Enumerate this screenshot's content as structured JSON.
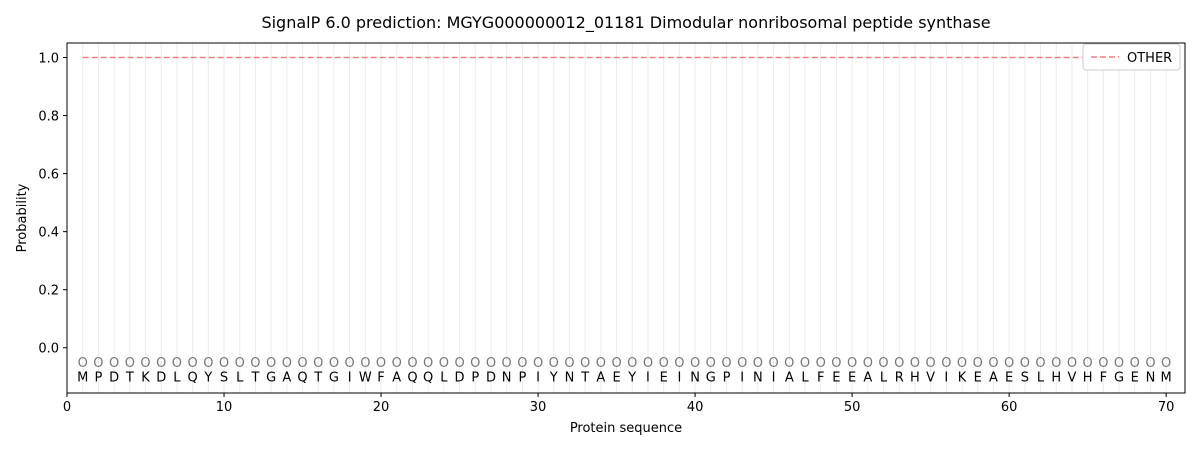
{
  "chart_data": {
    "type": "line",
    "title": "SignalP 6.0 prediction: MGYG000000012_01181 Dimodular nonribosomal peptide synthase",
    "x_label": "Protein sequence",
    "y_label": "Probability",
    "x": [
      1,
      2,
      3,
      4,
      5,
      6,
      7,
      8,
      9,
      10,
      11,
      12,
      13,
      14,
      15,
      16,
      17,
      18,
      19,
      20,
      21,
      22,
      23,
      24,
      25,
      26,
      27,
      28,
      29,
      30,
      31,
      32,
      33,
      34,
      35,
      36,
      37,
      38,
      39,
      40,
      41,
      42,
      43,
      44,
      45,
      46,
      47,
      48,
      49,
      50,
      51,
      52,
      53,
      54,
      55,
      56,
      57,
      58,
      59,
      60,
      61,
      62,
      63,
      64,
      65,
      66,
      67,
      68,
      69,
      70
    ],
    "sequence": [
      "M",
      "P",
      "D",
      "T",
      "K",
      "D",
      "L",
      "Q",
      "Y",
      "S",
      "L",
      "T",
      "G",
      "A",
      "Q",
      "T",
      "G",
      "I",
      "W",
      "F",
      "A",
      "Q",
      "Q",
      "L",
      "D",
      "P",
      "D",
      "N",
      "P",
      "I",
      "Y",
      "N",
      "T",
      "A",
      "E",
      "Y",
      "I",
      "E",
      "I",
      "N",
      "G",
      "P",
      "I",
      "N",
      "I",
      "A",
      "L",
      "F",
      "E",
      "E",
      "A",
      "L",
      "R",
      "H",
      "V",
      "I",
      "K",
      "E",
      "A",
      "E",
      "S",
      "L",
      "H",
      "V",
      "H",
      "F",
      "G",
      "E",
      "N",
      "M"
    ],
    "predictions": [
      "O",
      "O",
      "O",
      "O",
      "O",
      "O",
      "O",
      "O",
      "O",
      "O",
      "O",
      "O",
      "O",
      "O",
      "O",
      "O",
      "O",
      "O",
      "O",
      "O",
      "O",
      "O",
      "O",
      "O",
      "O",
      "O",
      "O",
      "O",
      "O",
      "O",
      "O",
      "O",
      "O",
      "O",
      "O",
      "O",
      "O",
      "O",
      "O",
      "O",
      "O",
      "O",
      "O",
      "O",
      "O",
      "O",
      "O",
      "O",
      "O",
      "O",
      "O",
      "O",
      "O",
      "O",
      "O",
      "O",
      "O",
      "O",
      "O",
      "O",
      "O",
      "O",
      "O",
      "O",
      "O",
      "O",
      "O",
      "O",
      "O",
      "O"
    ],
    "series": [
      {
        "name": "OTHER",
        "color": "#f08080",
        "dashed": true,
        "values": [
          1,
          1,
          1,
          1,
          1,
          1,
          1,
          1,
          1,
          1,
          1,
          1,
          1,
          1,
          1,
          1,
          1,
          1,
          1,
          1,
          1,
          1,
          1,
          1,
          1,
          1,
          1,
          1,
          1,
          1,
          1,
          1,
          1,
          1,
          1,
          1,
          1,
          1,
          1,
          1,
          1,
          1,
          1,
          1,
          1,
          1,
          1,
          1,
          1,
          1,
          1,
          1,
          1,
          1,
          1,
          1,
          1,
          1,
          1,
          1,
          1,
          1,
          1,
          1,
          1,
          1,
          1,
          1,
          1,
          1
        ]
      }
    ],
    "xlim": [
      0,
      71.2
    ],
    "ylim": [
      -0.156,
      1.05
    ],
    "xticks": [
      0,
      10,
      20,
      30,
      40,
      50,
      60,
      70
    ],
    "yticks": [
      {
        "value": 0,
        "label": "0.0"
      },
      0.2,
      0.4,
      0.6,
      0.8,
      {
        "value": 1,
        "label": "1.0"
      }
    ],
    "legend": "upper right"
  }
}
